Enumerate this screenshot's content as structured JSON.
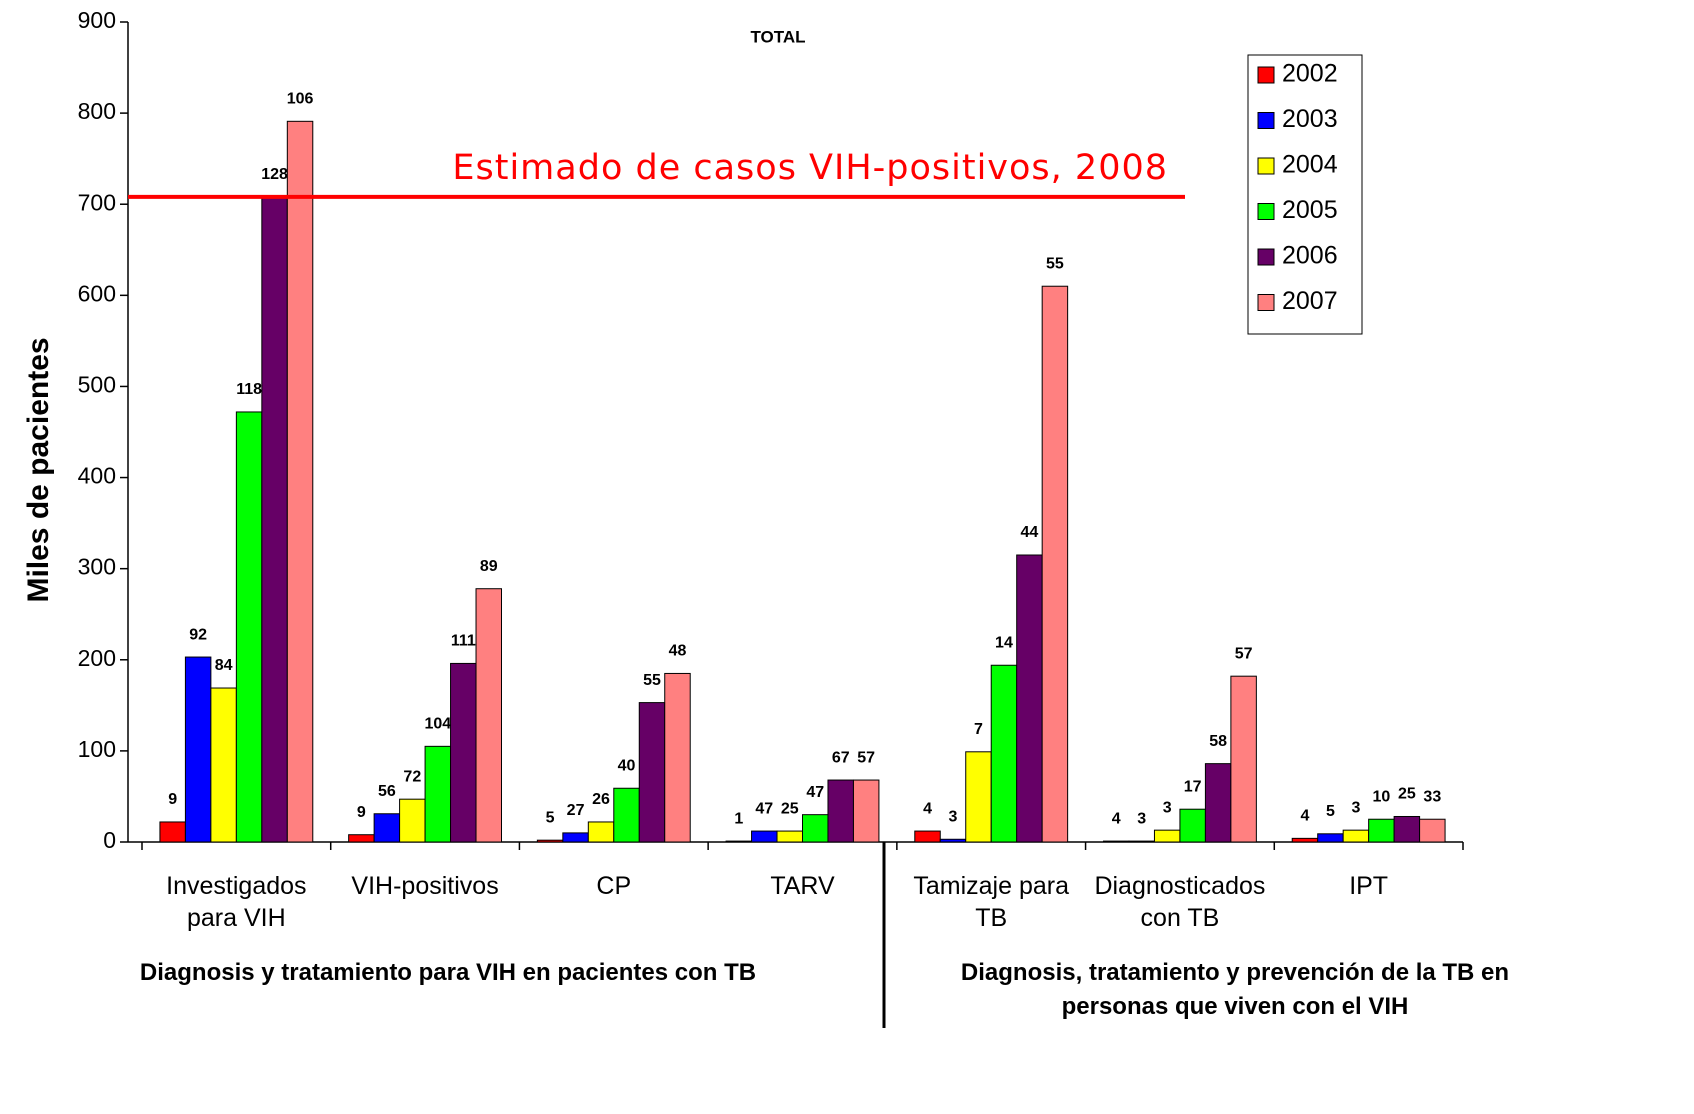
{
  "chart_data": {
    "type": "bar",
    "title": "TOTAL",
    "y_label": "Miles de pacientes",
    "categories": [
      "Investigados para VIH",
      "VIH-positivos",
      "CP",
      "TARV",
      "Tamizaje para TB",
      "Diagnosticados con TB",
      "IPT"
    ],
    "groups": [
      {
        "label": "Diagnosis y tratamiento para VIH en pacientes con TB",
        "categories": [
          0,
          1,
          2,
          3
        ]
      },
      {
        "label": "Diagnosis, tratamiento y prevención de la TB en personas que viven con el VIH",
        "categories": [
          4,
          5,
          6
        ]
      }
    ],
    "series": [
      {
        "name": "2002",
        "color": "#ff0000",
        "values": [
          22,
          8,
          2,
          1,
          12,
          1,
          4
        ],
        "bar_labels": [
          9,
          9,
          5,
          1,
          4,
          4,
          4
        ]
      },
      {
        "name": "2003",
        "color": "#0000ff",
        "values": [
          203,
          31,
          10,
          12,
          3,
          1,
          9
        ],
        "bar_labels": [
          92,
          56,
          27,
          47,
          3,
          3,
          5
        ]
      },
      {
        "name": "2004",
        "color": "#ffff00",
        "values": [
          169,
          47,
          22,
          12,
          99,
          13,
          13
        ],
        "bar_labels": [
          84,
          72,
          26,
          25,
          7,
          3,
          3
        ]
      },
      {
        "name": "2005",
        "color": "#00ff00",
        "values": [
          472,
          105,
          59,
          30,
          194,
          36,
          25
        ],
        "bar_labels": [
          118,
          104,
          40,
          47,
          14,
          17,
          10
        ]
      },
      {
        "name": "2006",
        "color": "#660066",
        "values": [
          708,
          196,
          153,
          68,
          315,
          86,
          28
        ],
        "bar_labels": [
          128,
          111,
          55,
          67,
          44,
          58,
          25
        ]
      },
      {
        "name": "2007",
        "color": "#ff8080",
        "values": [
          791,
          278,
          185,
          68,
          610,
          182,
          25
        ],
        "bar_labels": [
          106,
          89,
          48,
          57,
          55,
          57,
          33
        ]
      }
    ],
    "reference_line": {
      "label": "Estimado de casos VIH-positivos, 2008",
      "value": 708,
      "color": "#ff0000"
    },
    "ylim": [
      0,
      900
    ],
    "yticks": [
      0,
      100,
      200,
      300,
      400,
      500,
      600,
      700,
      800,
      900
    ],
    "grid": false,
    "legend": "upper right"
  }
}
